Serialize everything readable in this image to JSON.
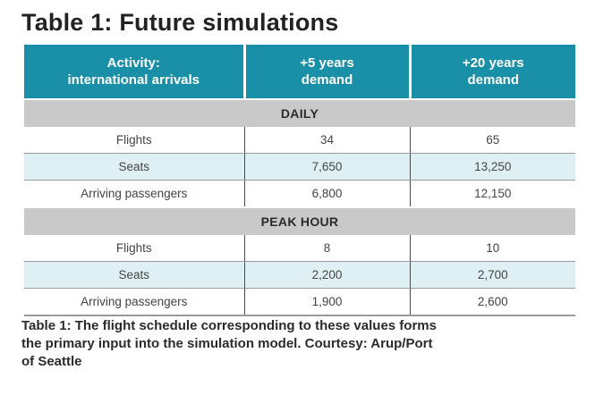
{
  "title": "Table 1: Future simulations",
  "table": {
    "headers": [
      [
        "Activity:",
        "international arrivals"
      ],
      [
        "+5 years",
        "demand"
      ],
      [
        "+20 years",
        "demand"
      ]
    ],
    "sections": [
      {
        "name": "DAILY",
        "rows": [
          [
            "Flights",
            "34",
            "65"
          ],
          [
            "Seats",
            "7,650",
            "13,250"
          ],
          [
            "Arriving passengers",
            "6,800",
            "12,150"
          ]
        ]
      },
      {
        "name": "PEAK HOUR",
        "rows": [
          [
            "Flights",
            "8",
            "10"
          ],
          [
            "Seats",
            "2,200",
            "2,700"
          ],
          [
            "Arriving passengers",
            "1,900",
            "2,600"
          ]
        ]
      }
    ]
  },
  "caption": {
    "lines": [
      "Table 1: The flight schedule corresponding to these values forms",
      "the primary input into the simulation model. Courtesy: Arup/Port",
      "of Seattle"
    ]
  },
  "colors": {
    "header_bg": "#1a8fa8",
    "section_bg": "#c9c9c9",
    "shaded_row_bg": "#dff0f5"
  }
}
